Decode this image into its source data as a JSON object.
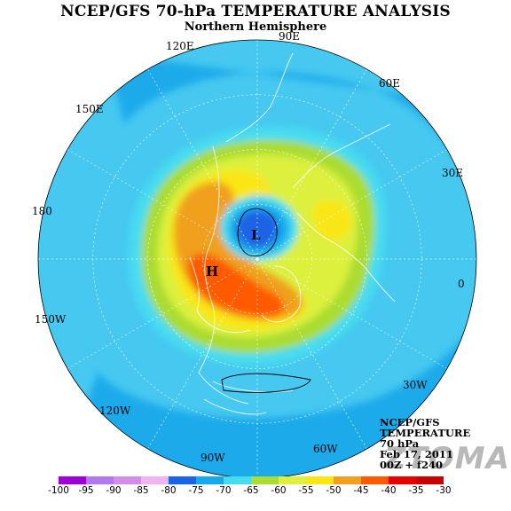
{
  "title": "NCEP/GFS 70-hPa TEMPERATURE ANALYSIS",
  "subtitle": "Northern Hemisphere",
  "longitude_labels": {
    "l90e": "90E",
    "l60e": "60E",
    "l30e": "30E",
    "l0": "0",
    "l30w": "30W",
    "l60w": "60W",
    "l90w": "90W",
    "l120w": "120W",
    "l150w": "150W",
    "l180": "180",
    "l150e": "150E",
    "l120e": "120E"
  },
  "pressure_centers": {
    "low": "L",
    "high": "H"
  },
  "info": {
    "model": "NCEP/GFS",
    "field": "TEMPERATURE",
    "level": "70 hPa",
    "date": "Feb 17, 2011",
    "run": "00Z + f240"
  },
  "watermark": "ZTOMA",
  "colorbar": {
    "labels": [
      "-100",
      "-95",
      "-90",
      "-85",
      "-80",
      "-75",
      "-70",
      "-65",
      "-60",
      "-55",
      "-50",
      "-45",
      "-40",
      "-35",
      "-30"
    ],
    "colors": [
      "#9b00d6",
      "#b478ee",
      "#d28ee8",
      "#f0b4f0",
      "#1a64e6",
      "#14aaeb",
      "#46dcf0",
      "#aadc32",
      "#dcf03c",
      "#fae614",
      "#f0a01e",
      "#ff5a00",
      "#e60000",
      "#c80000"
    ]
  },
  "map_colors": {
    "background": "#46c8f0",
    "outer_band": "#1eaaeb",
    "t70": "#46dcf0",
    "t65": "#aadc32",
    "t60": "#dcf03c",
    "t55": "#fae614",
    "t50": "#f0a01e",
    "t45": "#ff5a00",
    "t75": "#14aaeb",
    "t80": "#1a64e6",
    "coast": "#ffffff",
    "grid": "#ffffff",
    "contour": "#000000"
  }
}
